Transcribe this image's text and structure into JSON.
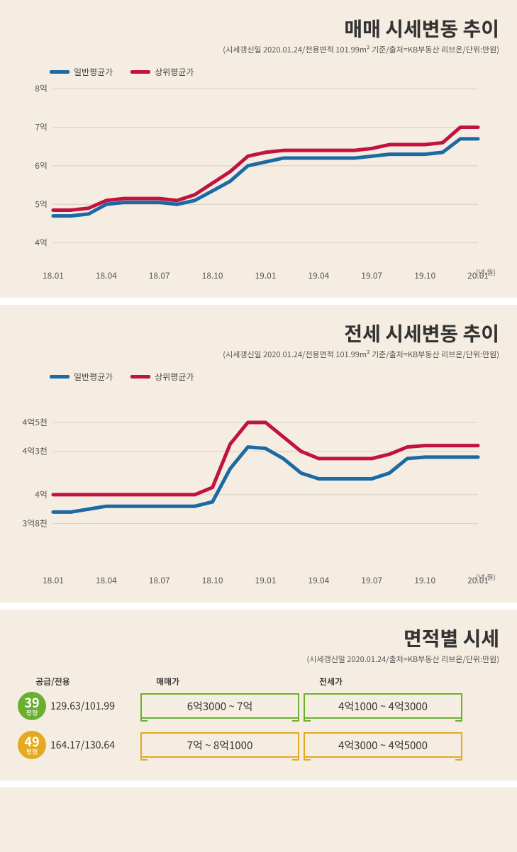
{
  "colors": {
    "background": "#f5ede1",
    "grid": "#d8cfc0",
    "blue": "#1b6aa5",
    "red": "#c01341",
    "green": "#6ab02e",
    "orange": "#e5a91f",
    "text": "#333333"
  },
  "chart1": {
    "title": "매매 시세변동 추이",
    "subtitle": "(시세갱신일 2020.01.24/전용면적 101.99m² 기준/출처=KB부동산 리브온/단위:만원)",
    "type": "line",
    "line_width": 5,
    "legend": [
      {
        "label": "일반평균가",
        "color": "#1b6aa5"
      },
      {
        "label": "상위평균가",
        "color": "#c01341"
      }
    ],
    "x_labels": [
      "18.01",
      "18.04",
      "18.07",
      "18.10",
      "19.01",
      "19.04",
      "19.07",
      "19.10",
      "20.01"
    ],
    "x_unit": "(년.월)",
    "y_labels": [
      "4억",
      "5억",
      "6억",
      "7억",
      "8억"
    ],
    "y_values": [
      4,
      5,
      6,
      7,
      8
    ],
    "ylim": [
      3.5,
      8
    ],
    "series_blue": [
      4.7,
      4.7,
      4.75,
      5.0,
      5.05,
      5.05,
      5.05,
      5.0,
      5.1,
      5.35,
      5.6,
      6.0,
      6.1,
      6.2,
      6.2,
      6.2,
      6.2,
      6.2,
      6.25,
      6.3,
      6.3,
      6.3,
      6.35,
      6.7,
      6.7
    ],
    "series_red": [
      4.85,
      4.85,
      4.9,
      5.1,
      5.15,
      5.15,
      5.15,
      5.1,
      5.25,
      5.55,
      5.85,
      6.25,
      6.35,
      6.4,
      6.4,
      6.4,
      6.4,
      6.4,
      6.45,
      6.55,
      6.55,
      6.55,
      6.6,
      7.0,
      7.0
    ]
  },
  "chart2": {
    "title": "전세 시세변동 추이",
    "subtitle": "(시세갱신일 2020.01.24/전용면적 101.99m² 기준/출처=KB부동산 리브온/단위:만원)",
    "type": "line",
    "line_width": 5,
    "legend": [
      {
        "label": "일반평균가",
        "color": "#1b6aa5"
      },
      {
        "label": "상위평균가",
        "color": "#c01341"
      }
    ],
    "x_labels": [
      "18.01",
      "18.04",
      "18.07",
      "18.10",
      "19.01",
      "19.04",
      "19.07",
      "19.10",
      "20.01"
    ],
    "x_unit": "(년.월)",
    "y_labels": [
      "3억8천",
      "4억",
      "4억3천",
      "4억5천"
    ],
    "y_values": [
      3.8,
      4.0,
      4.3,
      4.5
    ],
    "ylim": [
      3.5,
      4.7
    ],
    "series_blue": [
      3.88,
      3.88,
      3.9,
      3.92,
      3.92,
      3.92,
      3.92,
      3.92,
      3.92,
      3.95,
      4.18,
      4.33,
      4.32,
      4.25,
      4.15,
      4.11,
      4.11,
      4.11,
      4.11,
      4.15,
      4.25,
      4.26,
      4.26,
      4.26,
      4.26
    ],
    "series_red": [
      4.0,
      4.0,
      4.0,
      4.0,
      4.0,
      4.0,
      4.0,
      4.0,
      4.0,
      4.05,
      4.35,
      4.5,
      4.5,
      4.4,
      4.3,
      4.25,
      4.25,
      4.25,
      4.25,
      4.28,
      4.33,
      4.34,
      4.34,
      4.34,
      4.34
    ]
  },
  "footer": {
    "title": "면적별 시세",
    "subtitle": "(시세갱신일 2020.01.24/출처=KB부동산 리브온/단위:만원)",
    "col1_label": "공급/전용",
    "col2_label": "매매가",
    "col3_label": "전세가",
    "rows": [
      {
        "badge_num": "39",
        "badge_unit": "평형",
        "badge_color": "#6ab02e",
        "supply": "129.63/101.99",
        "sale": "6억3000 ~ 7억",
        "rent": "4억1000 ~ 4억3000"
      },
      {
        "badge_num": "49",
        "badge_unit": "평형",
        "badge_color": "#e5a91f",
        "supply": "164.17/130.64",
        "sale": "7억 ~ 8억1000",
        "rent": "4억3000 ~ 4억5000"
      }
    ]
  }
}
